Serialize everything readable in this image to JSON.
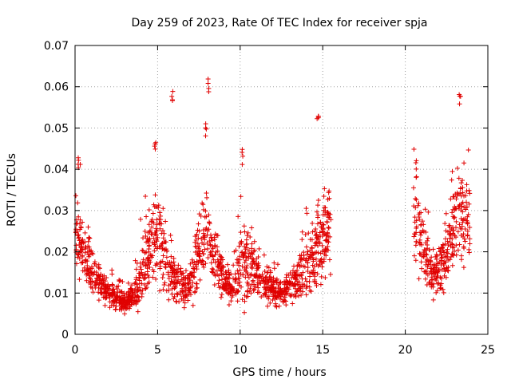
{
  "chart_data": {
    "type": "scatter",
    "title": "Day 259 of 2023, Rate Of TEC Index for receiver spja",
    "xlabel": "GPS time / hours",
    "ylabel": "ROTI / TECUs",
    "xlim": [
      0,
      25
    ],
    "ylim": [
      0,
      0.07
    ],
    "grid": true,
    "marker": "+",
    "color": "#e00000",
    "x_ticks": [
      0,
      5,
      10,
      15,
      20,
      25
    ],
    "x_tick_labels": [
      "0",
      "5",
      "10",
      "15",
      "20",
      "25"
    ],
    "y_ticks": [
      0,
      0.01,
      0.02,
      0.03,
      0.04,
      0.05,
      0.06,
      0.07
    ],
    "y_tick_labels": [
      "0",
      "0.01",
      "0.02",
      "0.03",
      "0.04",
      "0.05",
      "0.06",
      "0.07"
    ],
    "series": [
      {
        "name": "ROTI",
        "envelope_x": [
          0.0,
          0.3,
          0.6,
          1.0,
          1.5,
          2.0,
          2.5,
          3.0,
          3.5,
          4.0,
          4.5,
          5.0,
          5.5,
          6.0,
          6.5,
          7.0,
          7.5,
          8.0,
          8.5,
          9.0,
          9.5,
          10.0,
          10.5,
          11.0,
          11.5,
          12.0,
          12.5,
          13.0,
          13.5,
          14.0,
          14.5,
          15.0,
          15.5
        ],
        "envelope_center": [
          0.027,
          0.022,
          0.018,
          0.015,
          0.012,
          0.01,
          0.009,
          0.008,
          0.009,
          0.013,
          0.02,
          0.024,
          0.018,
          0.014,
          0.011,
          0.013,
          0.02,
          0.025,
          0.018,
          0.013,
          0.011,
          0.016,
          0.018,
          0.015,
          0.012,
          0.011,
          0.01,
          0.012,
          0.014,
          0.016,
          0.019,
          0.022,
          0.025
        ],
        "envelope_spread": [
          0.01,
          0.01,
          0.007,
          0.006,
          0.004,
          0.004,
          0.003,
          0.003,
          0.003,
          0.008,
          0.01,
          0.012,
          0.01,
          0.006,
          0.005,
          0.006,
          0.01,
          0.01,
          0.008,
          0.005,
          0.004,
          0.009,
          0.012,
          0.009,
          0.006,
          0.005,
          0.004,
          0.005,
          0.006,
          0.008,
          0.01,
          0.012,
          0.012
        ],
        "gap_hours": [
          15.5,
          20.5
        ],
        "tail_x": [
          20.5,
          21.0,
          21.5,
          22.0,
          22.5,
          23.0,
          23.5,
          24.0
        ],
        "tail_center": [
          0.028,
          0.022,
          0.016,
          0.015,
          0.02,
          0.026,
          0.03,
          0.024
        ],
        "tail_spread": [
          0.012,
          0.01,
          0.006,
          0.006,
          0.008,
          0.012,
          0.015,
          0.01
        ],
        "peaks": [
          {
            "x": 5.9,
            "y": 0.06
          },
          {
            "x": 8.1,
            "y": 0.062
          },
          {
            "x": 14.7,
            "y": 0.055
          },
          {
            "x": 23.3,
            "y": 0.059
          },
          {
            "x": 0.15,
            "y": 0.044
          },
          {
            "x": 4.85,
            "y": 0.047
          },
          {
            "x": 7.9,
            "y": 0.052
          },
          {
            "x": 10.1,
            "y": 0.045
          },
          {
            "x": 20.7,
            "y": 0.042
          }
        ]
      }
    ]
  }
}
